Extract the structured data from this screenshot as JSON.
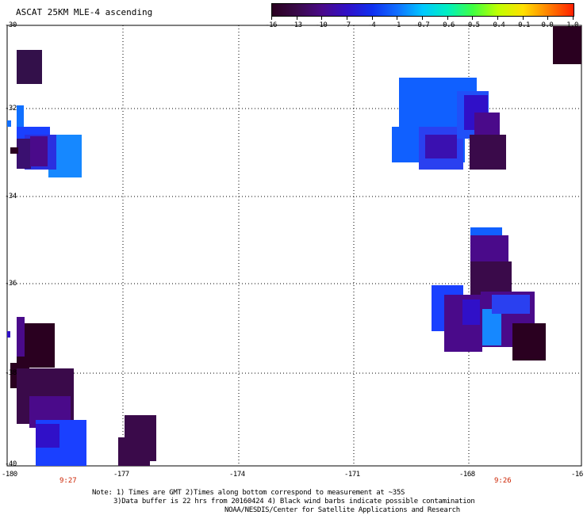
{
  "title": "ASCAT 25KM MLE-4 ascending",
  "colorbar": {
    "ticks": [
      "-16",
      "-13",
      "-10",
      "-7",
      "-4",
      "-1",
      "-0.7",
      "-0.6",
      "-0.5",
      "-0.4",
      "-0.1",
      "0.0",
      "1.0"
    ],
    "colors": [
      "#2a0020",
      "#3a0a4a",
      "#4a0a8a",
      "#3010c8",
      "#1030f0",
      "#1070ff",
      "#00c8ff",
      "#00f0c0",
      "#40ff40",
      "#c0ff00",
      "#ffe000",
      "#ff8000",
      "#ff2000"
    ]
  },
  "map": {
    "lat_labels": [
      "-30",
      "-32",
      "-34",
      "-36",
      "-38",
      "-40"
    ],
    "lon_labels": [
      "-180",
      "-177",
      "-174",
      "-171",
      "-168",
      "-16"
    ],
    "pass_times": [
      "9:27",
      "9:26"
    ]
  },
  "notes": {
    "line1": "Note: 1) Times are GMT 2)Times along bottom correspond to measurement at ~35S",
    "line2": "3)Data buffer is 22 hrs from 20160424 4) Black wind barbs indicate possible contamination",
    "line3": "NOAA/NESDIS/Center for Satellite Applications and Research"
  }
}
